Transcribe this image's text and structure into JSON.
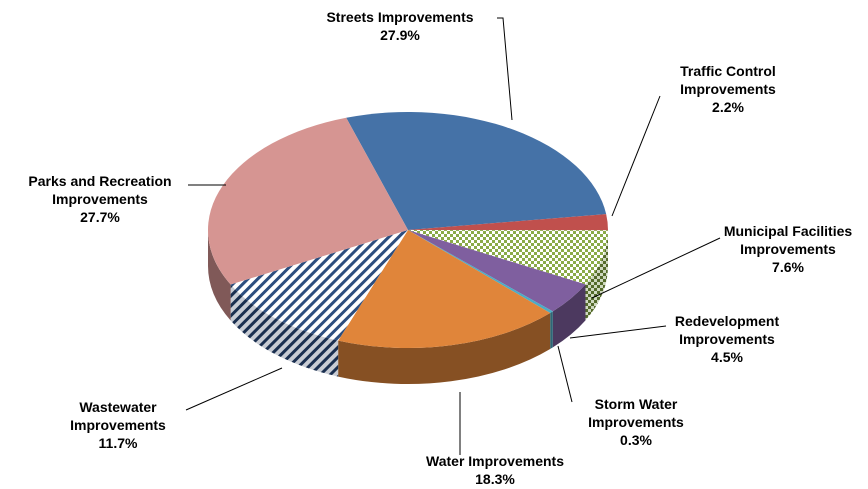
{
  "chart_data": {
    "type": "pie3d",
    "categories": [
      "Streets Improvements",
      "Traffic Control Improvements",
      "Municipal Facilities Improvements",
      "Redevelopment Improvements",
      "Storm Water Improvements",
      "Water Improvements",
      "Wastewater Improvements",
      "Parks and Recreation Improvements"
    ],
    "values": [
      27.9,
      2.2,
      7.6,
      4.5,
      0.3,
      18.3,
      11.7,
      27.7
    ],
    "value_labels": [
      "27.9%",
      "2.2%",
      "7.6%",
      "4.5%",
      "0.3%",
      "18.3%",
      "11.7%",
      "27.7%"
    ],
    "colors": [
      "#4572a7",
      "#c0504d",
      "#9bbb59",
      "#7f5f9f",
      "#4bacc6",
      "#e0853a",
      "#2c4d7e",
      "#d69592"
    ],
    "patterns": [
      null,
      null,
      "checker",
      null,
      null,
      null,
      "stripes",
      null
    ]
  }
}
